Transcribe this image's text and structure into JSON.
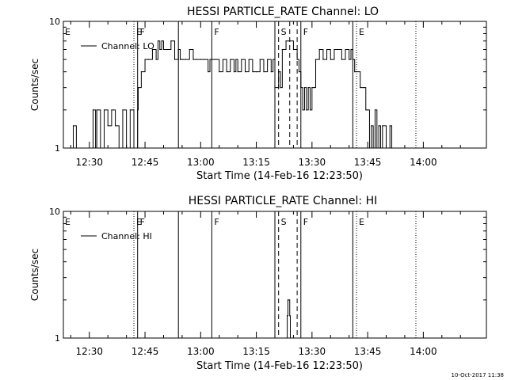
{
  "footer_date": "10-Oct-2017 11:38",
  "chart_data": [
    {
      "type": "line",
      "title": "HESSI PARTICLE_RATE Channel: LO",
      "xlabel": "Start Time (14-Feb-16 12:23:50)",
      "ylabel": "Counts/sec",
      "yscale": "log",
      "ylim": [
        1,
        10
      ],
      "y_tick_labels": [
        "1",
        "10"
      ],
      "xlim_minutes_after_1223": [
        0,
        114
      ],
      "x_tick_labels": [
        "12:30",
        "12:45",
        "13:00",
        "13:15",
        "13:30",
        "13:45",
        "14:00"
      ],
      "legend": "Channel: LO",
      "legend_position": "top-left",
      "markers": [
        {
          "time": "12:42",
          "style": "dotted",
          "label": "E"
        },
        {
          "time": "12:43",
          "style": "solid",
          "label": "F"
        },
        {
          "time": "12:54",
          "style": "solid",
          "label": ""
        },
        {
          "time": "13:03",
          "style": "solid",
          "label": "F"
        },
        {
          "time": "13:20",
          "style": "solid",
          "label": ""
        },
        {
          "time": "13:21",
          "style": "dashed",
          "label": "S"
        },
        {
          "time": "13:24",
          "style": "dashed",
          "label": ""
        },
        {
          "time": "13:26",
          "style": "dashed",
          "label": ""
        },
        {
          "time": "13:27",
          "style": "solid",
          "label": "F"
        },
        {
          "time": "13:41",
          "style": "solid",
          "label": ""
        },
        {
          "time": "13:42",
          "style": "dotted",
          "label": "E"
        },
        {
          "time": "13:58",
          "style": "dotted",
          "label": ""
        }
      ],
      "corner_label": "E",
      "series": [
        {
          "name": "Channel: LO",
          "points": [
            [
              "12:25:00",
              1
            ],
            [
              "12:25:40",
              1.5
            ],
            [
              "12:26:30",
              1
            ],
            [
              "12:28:00",
              1
            ],
            [
              "12:30:50",
              1
            ],
            [
              "12:31:00",
              2
            ],
            [
              "12:31:40",
              1
            ],
            [
              "12:32:00",
              2
            ],
            [
              "12:33:00",
              1
            ],
            [
              "12:34:00",
              2
            ],
            [
              "12:35:00",
              1.5
            ],
            [
              "12:36:00",
              2
            ],
            [
              "12:37:00",
              1.5
            ],
            [
              "12:38:00",
              1
            ],
            [
              "12:39:00",
              2
            ],
            [
              "12:40:00",
              1
            ],
            [
              "12:41:00",
              2
            ],
            [
              "12:42:00",
              1
            ],
            [
              "12:43:00",
              2
            ],
            [
              "12:43:10",
              3
            ],
            [
              "12:44:00",
              4
            ],
            [
              "12:45:00",
              5
            ],
            [
              "12:46:00",
              5
            ],
            [
              "12:47:00",
              6
            ],
            [
              "12:48:00",
              5
            ],
            [
              "12:48:30",
              7
            ],
            [
              "12:49:00",
              6
            ],
            [
              "12:49:30",
              7
            ],
            [
              "12:50:00",
              6
            ],
            [
              "12:51:00",
              6
            ],
            [
              "12:52:00",
              7
            ],
            [
              "12:53:00",
              5
            ],
            [
              "12:54:00",
              6
            ],
            [
              "12:54:30",
              5
            ],
            [
              "12:55:00",
              5
            ],
            [
              "12:56:00",
              5
            ],
            [
              "12:57:00",
              6
            ],
            [
              "12:58:00",
              5
            ],
            [
              "12:59:00",
              5
            ],
            [
              "13:00:00",
              5
            ],
            [
              "13:01:00",
              5
            ],
            [
              "13:02:00",
              4
            ],
            [
              "13:02:30",
              5
            ],
            [
              "13:03:00",
              5
            ],
            [
              "13:04:00",
              5
            ],
            [
              "13:05:00",
              4
            ],
            [
              "13:06:00",
              5
            ],
            [
              "13:07:00",
              4
            ],
            [
              "13:08:00",
              5
            ],
            [
              "13:09:00",
              4
            ],
            [
              "13:09:30",
              5
            ],
            [
              "13:10:00",
              4
            ],
            [
              "13:11:00",
              5
            ],
            [
              "13:12:00",
              4
            ],
            [
              "13:13:00",
              5
            ],
            [
              "13:14:00",
              4
            ],
            [
              "13:15:00",
              4
            ],
            [
              "13:16:00",
              5
            ],
            [
              "13:17:00",
              4
            ],
            [
              "13:18:00",
              5
            ],
            [
              "13:19:00",
              4
            ],
            [
              "13:19:30",
              5
            ],
            [
              "13:20:00",
              3
            ],
            [
              "13:21:00",
              4
            ],
            [
              "13:21:30",
              3
            ],
            [
              "13:22:00",
              6
            ],
            [
              "13:23:00",
              7
            ],
            [
              "13:24:00",
              7
            ],
            [
              "13:25:00",
              6
            ],
            [
              "13:26:00",
              5
            ],
            [
              "13:26:30",
              4
            ],
            [
              "13:27:00",
              3
            ],
            [
              "13:27:30",
              2
            ],
            [
              "13:28:00",
              3
            ],
            [
              "13:28:30",
              2
            ],
            [
              "13:29:00",
              3
            ],
            [
              "13:29:30",
              2
            ],
            [
              "13:30:00",
              3
            ],
            [
              "13:30:30",
              3
            ],
            [
              "13:31:00",
              5
            ],
            [
              "13:32:00",
              6
            ],
            [
              "13:33:00",
              5
            ],
            [
              "13:34:00",
              6
            ],
            [
              "13:35:00",
              5
            ],
            [
              "13:36:00",
              6
            ],
            [
              "13:37:00",
              6
            ],
            [
              "13:38:00",
              5
            ],
            [
              "13:39:00",
              6
            ],
            [
              "13:40:00",
              5
            ],
            [
              "13:40:30",
              6
            ],
            [
              "13:41:00",
              5
            ],
            [
              "13:41:30",
              4
            ],
            [
              "13:42:00",
              4
            ],
            [
              "13:43:00",
              3
            ],
            [
              "13:44:00",
              3
            ],
            [
              "13:44:30",
              2
            ],
            [
              "13:45:00",
              2
            ],
            [
              "13:45:30",
              1
            ],
            [
              "13:46:00",
              1.5
            ],
            [
              "13:46:30",
              1
            ],
            [
              "13:47:00",
              2
            ],
            [
              "13:47:30",
              1
            ],
            [
              "13:48:00",
              1.5
            ],
            [
              "13:48:30",
              1
            ],
            [
              "13:49:00",
              1.5
            ],
            [
              "13:50:00",
              1
            ],
            [
              "13:51:00",
              1.5
            ],
            [
              "13:51:30",
              1
            ]
          ]
        }
      ]
    },
    {
      "type": "line",
      "title": "HESSI PARTICLE_RATE Channel: HI",
      "xlabel": "Start Time (14-Feb-16 12:23:50)",
      "ylabel": "Counts/sec",
      "yscale": "log",
      "ylim": [
        1,
        10
      ],
      "y_tick_labels": [
        "1",
        "10"
      ],
      "xlim_minutes_after_1223": [
        0,
        114
      ],
      "x_tick_labels": [
        "12:30",
        "12:45",
        "13:00",
        "13:15",
        "13:30",
        "13:45",
        "14:00"
      ],
      "legend": "Channel: HI",
      "legend_position": "top-left",
      "markers": [
        {
          "time": "12:42",
          "style": "dotted",
          "label": "E"
        },
        {
          "time": "12:43",
          "style": "solid",
          "label": "F"
        },
        {
          "time": "12:54",
          "style": "solid",
          "label": ""
        },
        {
          "time": "13:03",
          "style": "solid",
          "label": "F"
        },
        {
          "time": "13:20",
          "style": "solid",
          "label": ""
        },
        {
          "time": "13:21",
          "style": "dashed",
          "label": "S"
        },
        {
          "time": "13:26",
          "style": "dashed",
          "label": ""
        },
        {
          "time": "13:27",
          "style": "solid",
          "label": "F"
        },
        {
          "time": "13:41",
          "style": "solid",
          "label": ""
        },
        {
          "time": "13:42",
          "style": "dotted",
          "label": "E"
        },
        {
          "time": "13:58",
          "style": "dotted",
          "label": ""
        }
      ],
      "corner_label": "E",
      "series": [
        {
          "name": "Channel: HI",
          "points": [
            [
              "13:23:10",
              1
            ],
            [
              "13:23:20",
              1.5
            ],
            [
              "13:23:30",
              2
            ],
            [
              "13:23:50",
              2
            ],
            [
              "13:24:00",
              1.5
            ],
            [
              "13:24:10",
              1
            ]
          ]
        }
      ]
    }
  ]
}
